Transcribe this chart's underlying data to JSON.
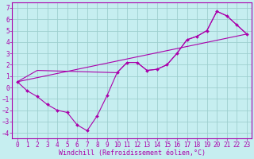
{
  "xlabel": "Windchill (Refroidissement éolien,°C)",
  "background_color": "#c6eef0",
  "grid_color": "#9ecfcf",
  "line_color": "#aa00aa",
  "spine_color": "#aa00aa",
  "xlim": [
    -0.5,
    23.5
  ],
  "ylim": [
    -4.5,
    7.5
  ],
  "xticks": [
    0,
    1,
    2,
    3,
    4,
    5,
    6,
    7,
    8,
    9,
    10,
    11,
    12,
    13,
    14,
    15,
    16,
    17,
    18,
    19,
    20,
    21,
    22,
    23
  ],
  "yticks": [
    -4,
    -3,
    -2,
    -1,
    0,
    1,
    2,
    3,
    4,
    5,
    6,
    7
  ],
  "line1_x": [
    0,
    1,
    2,
    3,
    4,
    5,
    6,
    7,
    8,
    9,
    10,
    11,
    12,
    13,
    14,
    15,
    16,
    17,
    18,
    19,
    20,
    21,
    22,
    23
  ],
  "line1_y": [
    0.5,
    -0.3,
    -0.8,
    -1.5,
    -2.0,
    -2.2,
    -3.3,
    -3.8,
    -2.5,
    -0.7,
    1.3,
    2.2,
    2.2,
    1.5,
    1.6,
    2.0,
    3.0,
    4.2,
    4.5,
    5.0,
    6.7,
    6.3,
    5.5,
    4.7
  ],
  "line2_x": [
    0,
    2,
    10,
    11,
    12,
    13,
    14,
    15,
    16,
    17,
    18,
    19,
    20,
    21,
    22,
    23
  ],
  "line2_y": [
    0.5,
    1.5,
    1.3,
    2.2,
    2.2,
    1.5,
    1.6,
    2.0,
    3.0,
    4.2,
    4.5,
    5.0,
    6.7,
    6.3,
    5.5,
    4.7
  ],
  "line3_x": [
    0,
    23
  ],
  "line3_y": [
    0.5,
    4.7
  ],
  "tick_fontsize": 5.5,
  "xlabel_fontsize": 6.0
}
